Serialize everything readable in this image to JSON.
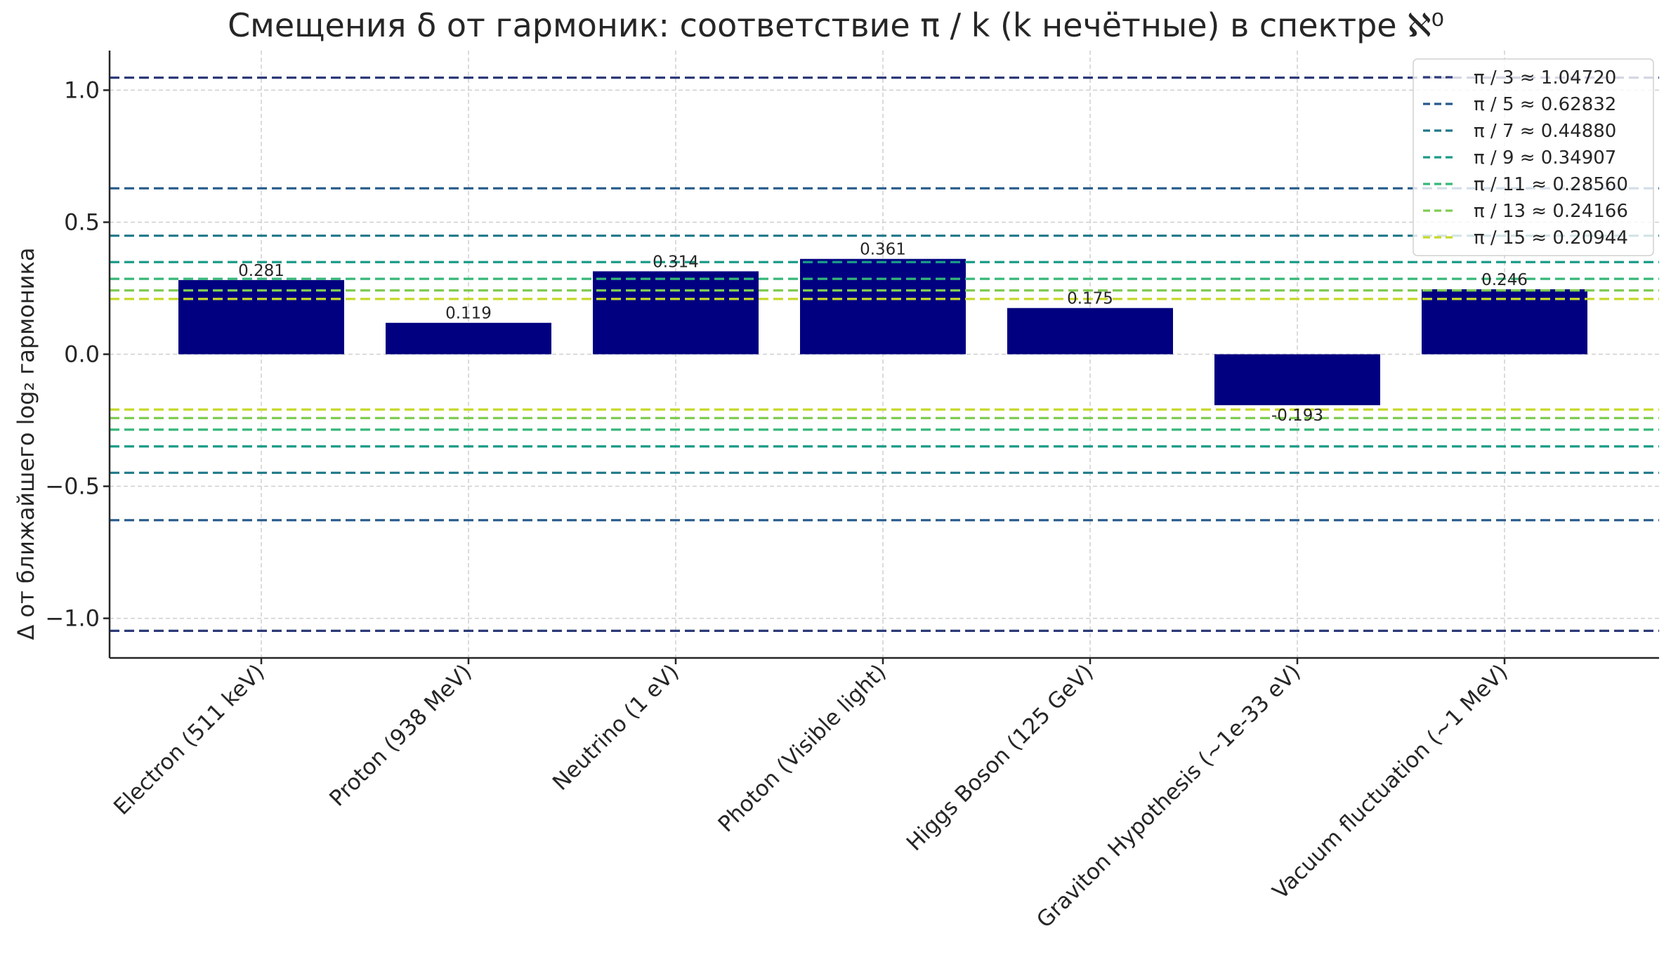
{
  "chart_data": {
    "type": "bar",
    "title": "Смещения δ от гармоник: соответствие π / k (k нечётные) в спектре ℵ⁰",
    "xlabel": "",
    "ylabel": "Δ от ближайшего log₂ гармоника",
    "ylim": [
      -1.15,
      1.15
    ],
    "yticks": [
      -1.0,
      -0.5,
      0.0,
      0.5,
      1.0
    ],
    "ytick_labels": [
      "−1.0",
      "−0.5",
      "0.0",
      "0.5",
      "1.0"
    ],
    "grid": true,
    "legend_position": "top-right",
    "bar_color": "#000080",
    "categories": [
      "Electron (511 keV)",
      "Proton (938 MeV)",
      "Neutrino (1 eV)",
      "Photon (Visible light)",
      "Higgs Boson (125 GeV)",
      "Graviton Hypothesis (~1e-33 eV)",
      "Vacuum fluctuation (~1 MeV)"
    ],
    "values": [
      0.281,
      0.119,
      0.314,
      0.361,
      0.175,
      -0.193,
      0.246
    ],
    "value_labels": [
      "0.281",
      "0.119",
      "0.314",
      "0.361",
      "0.175",
      "-0.193",
      "0.246"
    ],
    "reference_lines": [
      {
        "label": "π / 3 ≈ 1.04720",
        "value": 1.0472,
        "color": "#2d3a78"
      },
      {
        "label": "π / 5 ≈ 0.62832",
        "value": 0.62832,
        "color": "#24598a"
      },
      {
        "label": "π / 7 ≈ 0.44880",
        "value": 0.4488,
        "color": "#1e7889"
      },
      {
        "label": "π / 9 ≈ 0.34907",
        "value": 0.34907,
        "color": "#1a9b87"
      },
      {
        "label": "π / 11 ≈ 0.28560",
        "value": 0.2856,
        "color": "#35b778"
      },
      {
        "label": "π / 13 ≈ 0.24166",
        "value": 0.24166,
        "color": "#7fcc52"
      },
      {
        "label": "π / 15 ≈ 0.20944",
        "value": 0.20944,
        "color": "#c6d92a"
      }
    ]
  }
}
